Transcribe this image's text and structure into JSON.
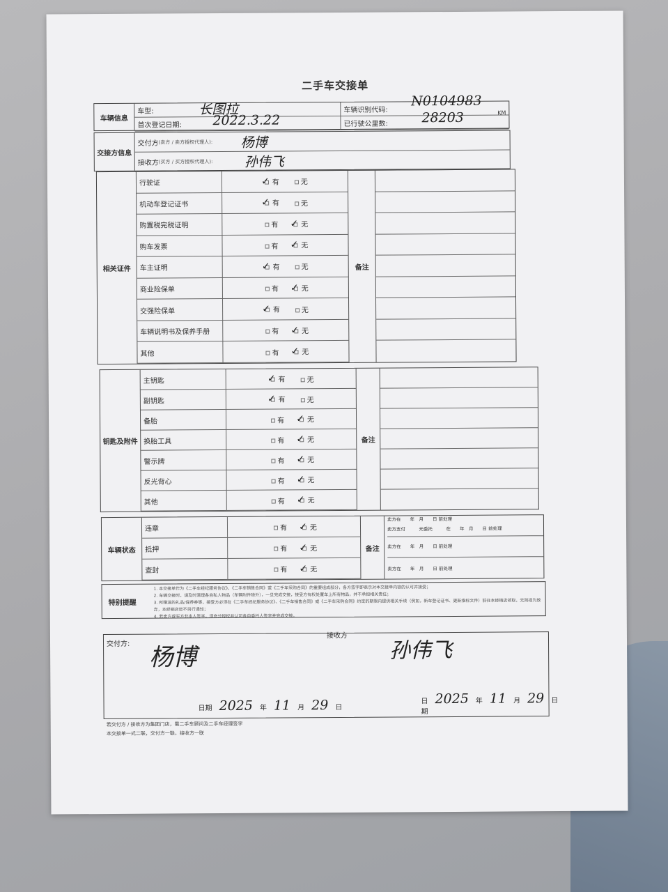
{
  "title": "二手车交接单",
  "vehicle": {
    "section": "车辆信息",
    "model_label": "车型:",
    "model_value": "长图拉",
    "vin_label": "车辆识别代码:",
    "vin_value": "N0104983",
    "reg_label": "首次登记日期:",
    "reg_value": "2022.3.22",
    "mileage_label": "已行驶公里数:",
    "mileage_value": "28203",
    "mileage_unit": "KM"
  },
  "parties": {
    "section": "交接方信息",
    "deliver_label": "交付方",
    "deliver_hint": "(卖方 / 卖方授权代理人):",
    "deliver_value": "杨博",
    "receive_label": "接收方",
    "receive_hint": "(买方 / 买方授权代理人):",
    "receive_value": "孙伟飞"
  },
  "yes": "有",
  "no": "无",
  "remark": "备注",
  "documents": {
    "section": "相关证件",
    "items": [
      {
        "label": "行驶证",
        "checked": "有"
      },
      {
        "label": "机动车登记证书",
        "checked": "有"
      },
      {
        "label": "购置税完税证明",
        "checked": "无"
      },
      {
        "label": "购车发票",
        "checked": "无"
      },
      {
        "label": "车主证明",
        "checked": "有"
      },
      {
        "label": "商业险保单",
        "checked": "无"
      },
      {
        "label": "交强险保单",
        "checked": "有"
      },
      {
        "label": "车辆说明书及保养手册",
        "checked": "无"
      },
      {
        "label": "其他",
        "checked": "无"
      }
    ]
  },
  "keys": {
    "section": "钥匙及附件",
    "items": [
      {
        "label": "主钥匙",
        "checked": "有"
      },
      {
        "label": "副钥匙",
        "checked": "有"
      },
      {
        "label": "备胎",
        "checked": "无"
      },
      {
        "label": "换胎工具",
        "checked": "无"
      },
      {
        "label": "警示牌",
        "checked": "无"
      },
      {
        "label": "反光背心",
        "checked": "无"
      },
      {
        "label": "其他",
        "checked": "无"
      }
    ]
  },
  "status": {
    "section": "车辆状态",
    "items": [
      {
        "label": "违章",
        "checked": "无"
      },
      {
        "label": "抵押",
        "checked": "无"
      },
      {
        "label": "查封",
        "checked": "无"
      }
    ],
    "notes": [
      "卖方在　　年　月　　日 前处理",
      "卖方支付　　　元委托　　　在　　年　月　　日 前处理",
      "卖方在　　年　月　　日 前处理",
      "卖方在　　年　月　　日 前处理"
    ]
  },
  "reminders": {
    "section": "特别提醒",
    "lines": [
      "1. 本交接单作为《二手车经纪服务协议》、《二手车销售合同》或《二手车采购合同》的重要组成部分，各方签字即表示对本交接单内容的认可并接受；",
      "2. 车辆交接时，请及时清理各自私人物品（车辆附件除外），一旦完成交接，接受方有权处置车上所有物品，并不承担相关责任；",
      "3. 所赠送的礼品/保养券等，接受方必须在《二手车经纪服务协议》、《二手车销售合同》或《二手车采购合同》约定的期限内提供相关手续（例如，新车登记证书、更新指标文件）前往本经销店领取，无则视为放弃，本经销店恕不另行通知；",
      "4. 若卖方或买方非本人签字，须充分授权并认可各自委托人签字并完成交接。"
    ]
  },
  "signature": {
    "deliver_label": "交付方:",
    "receive_label": "接收方",
    "deliver_sign": "杨博",
    "receive_sign": "孙伟飞",
    "date_label": "日期",
    "year_unit": "年",
    "month_unit": "月",
    "day_unit": "日",
    "left_date": {
      "year": "2025",
      "month": "11",
      "day": "29"
    },
    "right_date": {
      "year": "2025",
      "month": "11",
      "day": "29"
    }
  },
  "footnotes": [
    "若交付方 / 接收方为集团门店，需二手车顾问及二手车经理签字",
    "本交接单一式二联，交付方一联，接收方一联"
  ]
}
